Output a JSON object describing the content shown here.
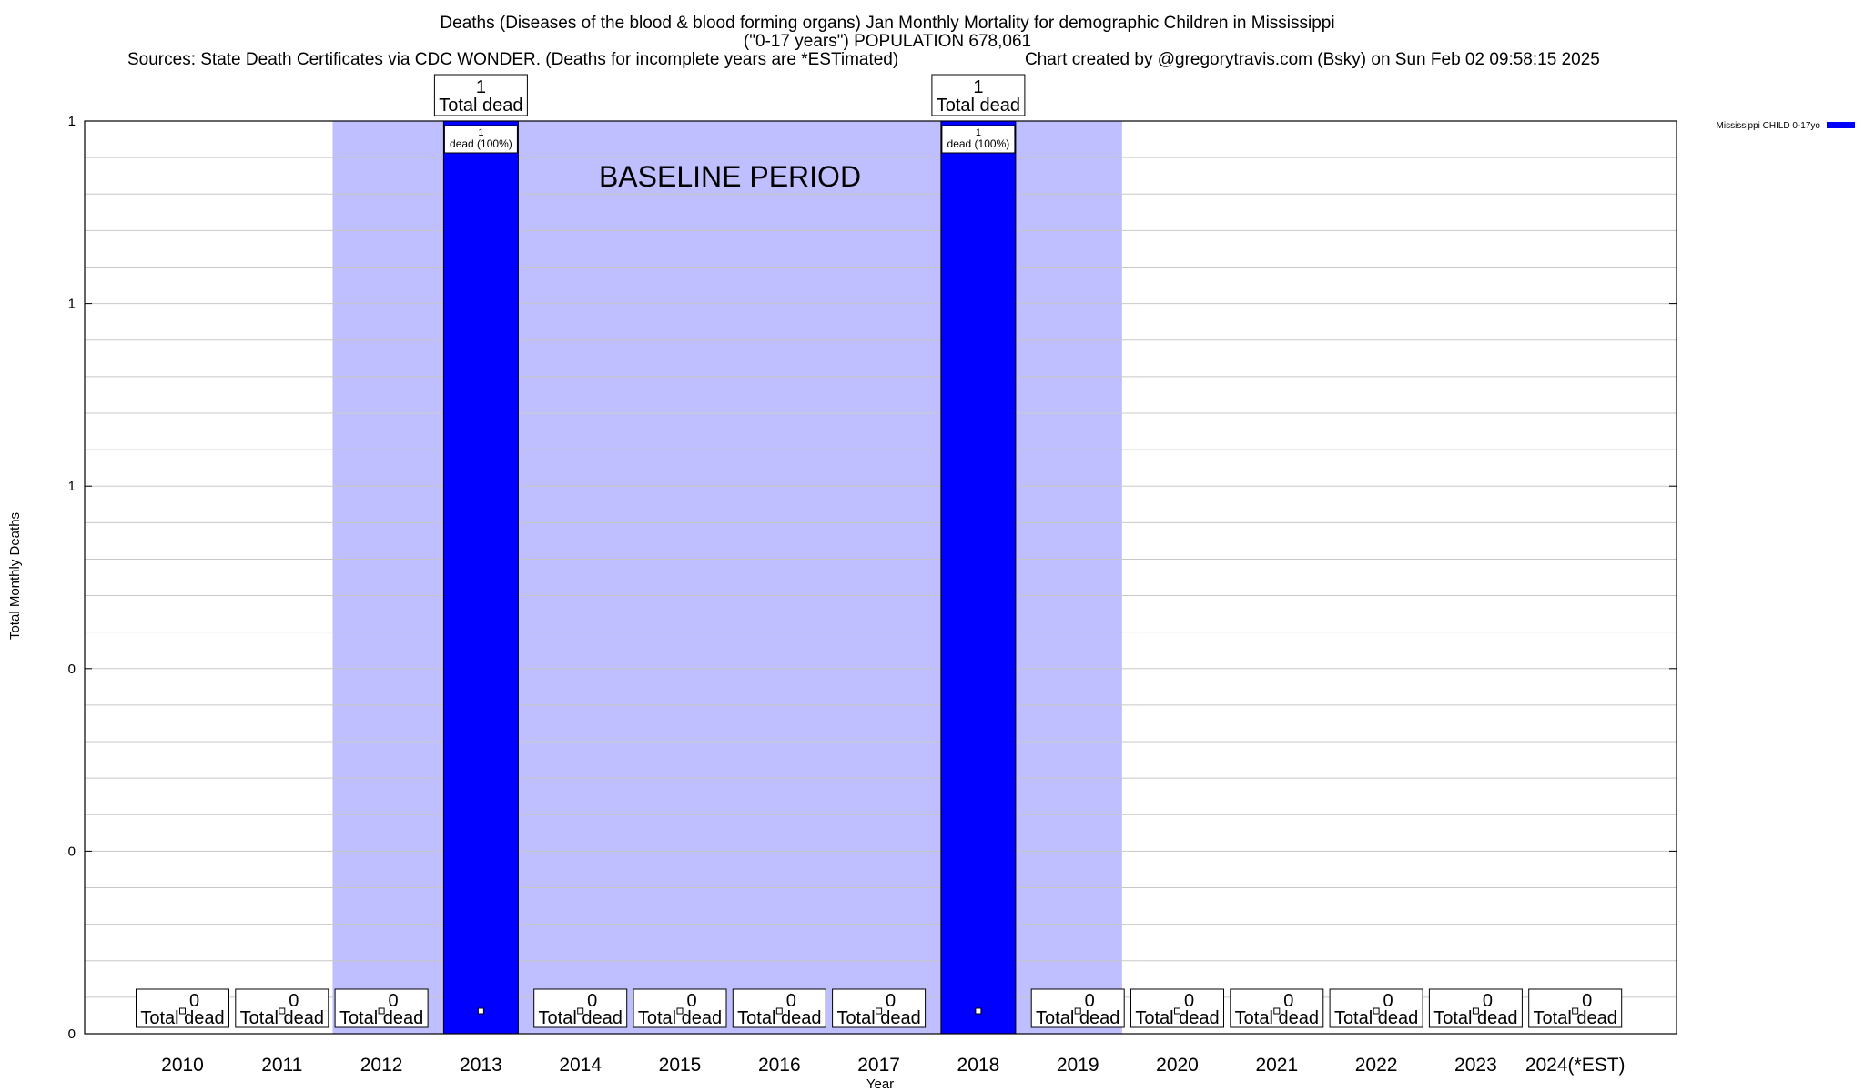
{
  "chart_data": {
    "type": "bar",
    "title": "Deaths (Diseases of the blood & blood forming organs) Jan Monthly Mortality for demographic Children in Mississippi",
    "subtitle": "(\"0-17 years\") POPULATION 678,061",
    "sources": "Sources: State Death Certificates via CDC WONDER. (Deaths for incomplete years are *ESTimated)",
    "credit": "Chart created by @gregorytravis.com (Bsky) on Sun Feb 02 09:58:15 2025",
    "xlabel": "Year",
    "ylabel": "Total Monthly Deaths",
    "categories": [
      "2010",
      "2011",
      "2012",
      "2013",
      "2014",
      "2015",
      "2016",
      "2017",
      "2018",
      "2019",
      "2020",
      "2021",
      "2022",
      "2023",
      "2024(*EST)"
    ],
    "series": [
      {
        "name": "Mississippi CHILD 0-17yo",
        "color": "#0000ff",
        "values": [
          0,
          0,
          0,
          1,
          0,
          0,
          0,
          0,
          1,
          0,
          0,
          0,
          0,
          0,
          0
        ]
      }
    ],
    "ylim": [
      0,
      1
    ],
    "y_tick_labels": [
      "0",
      "0",
      "0",
      "1",
      "1",
      "1"
    ],
    "total_label_text": "Total dead",
    "bar_label_texts": [
      "1",
      "dead (100%)"
    ],
    "baseline": {
      "label": "BASELINE PERIOD",
      "start_category": "2012",
      "end_category": "2019",
      "color": "#bfbfff"
    },
    "grid": true,
    "legend_position": "top-right"
  }
}
